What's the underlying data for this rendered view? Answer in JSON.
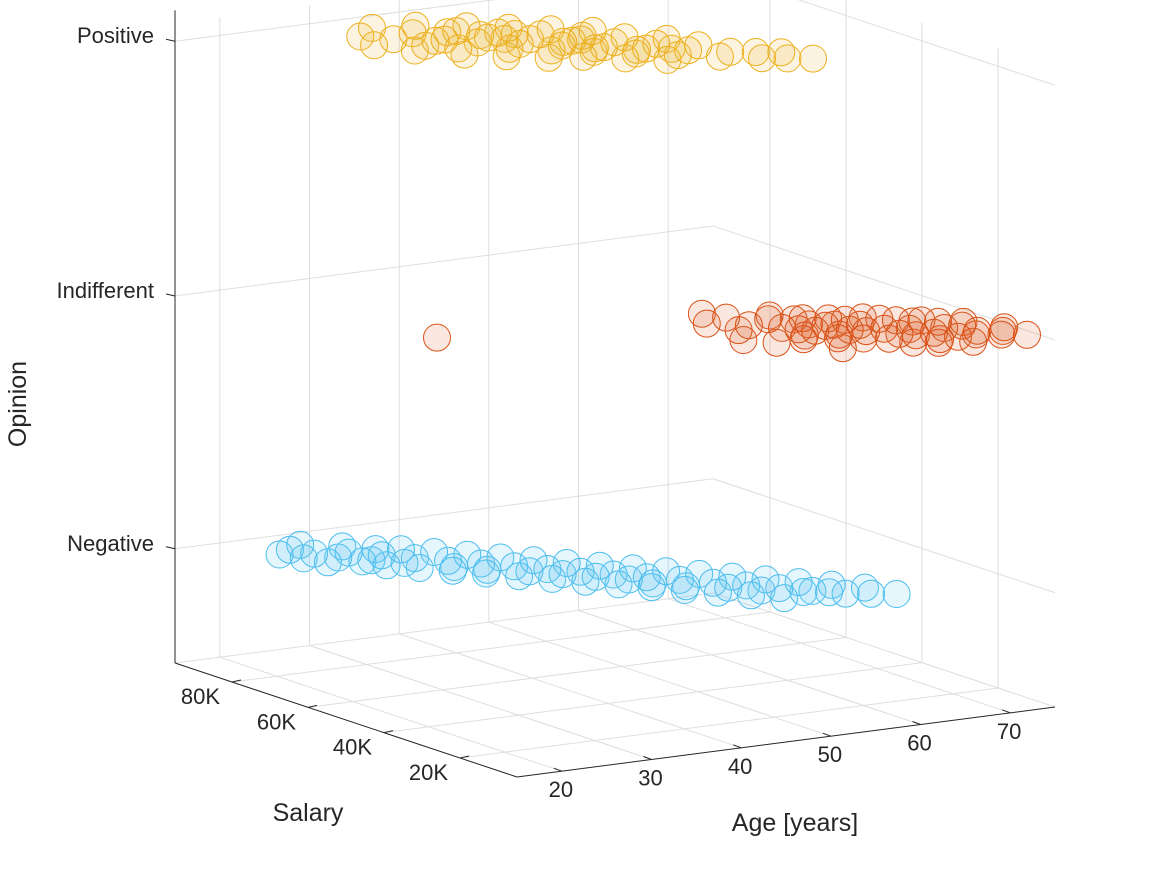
{
  "chart_data": {
    "type": "scatter3d",
    "xlabel": "Age [years]",
    "ylabel": "Salary",
    "zlabel": "Opinion",
    "x_ticks": [
      20,
      30,
      40,
      50,
      60,
      70
    ],
    "y_ticks": [
      "20K",
      "40K",
      "60K",
      "80K"
    ],
    "y_tick_values": [
      20000,
      40000,
      60000,
      80000
    ],
    "z_ticks": [
      "Negative",
      "Indifferent",
      "Positive"
    ],
    "xlim": [
      15,
      75
    ],
    "ylim": [
      5000,
      95000
    ],
    "grid": true,
    "legend": "none",
    "series": [
      {
        "color": "#4DBEEE",
        "z": "Negative",
        "points": [
          [
            22,
            84000
          ],
          [
            23,
            80000
          ],
          [
            24,
            86000
          ],
          [
            24,
            76000
          ],
          [
            25,
            82000
          ],
          [
            26,
            78000
          ],
          [
            26,
            88000
          ],
          [
            27,
            74000
          ],
          [
            28,
            80000
          ],
          [
            28,
            70000
          ],
          [
            29,
            84000
          ],
          [
            30,
            76000
          ],
          [
            30,
            66000
          ],
          [
            31,
            80000
          ],
          [
            32,
            72000
          ],
          [
            32,
            62000
          ],
          [
            33,
            78000
          ],
          [
            34,
            68000
          ],
          [
            34,
            58000
          ],
          [
            35,
            74000
          ],
          [
            36,
            64000
          ],
          [
            36,
            54000
          ],
          [
            37,
            70000
          ],
          [
            38,
            60000
          ],
          [
            38,
            50000
          ],
          [
            39,
            66000
          ],
          [
            40,
            56000
          ],
          [
            40,
            46000
          ],
          [
            41,
            62000
          ],
          [
            42,
            52000
          ],
          [
            42,
            42000
          ],
          [
            43,
            58000
          ],
          [
            44,
            48000
          ],
          [
            44,
            38000
          ],
          [
            45,
            54000
          ],
          [
            46,
            44000
          ],
          [
            46,
            34000
          ],
          [
            47,
            50000
          ],
          [
            48,
            40000
          ],
          [
            48,
            30000
          ],
          [
            49,
            46000
          ],
          [
            50,
            36000
          ],
          [
            50,
            26000
          ],
          [
            51,
            42000
          ],
          [
            52,
            32000
          ],
          [
            52,
            22000
          ],
          [
            53,
            38000
          ],
          [
            54,
            28000
          ],
          [
            55,
            34000
          ],
          [
            56,
            24000
          ],
          [
            57,
            30000
          ],
          [
            58,
            20000
          ],
          [
            59,
            26000
          ],
          [
            60,
            18000
          ],
          [
            61,
            22000
          ],
          [
            62,
            16000
          ],
          [
            35,
            60000
          ],
          [
            33,
            64000
          ],
          [
            45,
            40000
          ],
          [
            47,
            36000
          ],
          [
            40,
            52000
          ],
          [
            38,
            56000
          ],
          [
            55,
            24000
          ],
          [
            52,
            28000
          ],
          [
            30,
            70000
          ],
          [
            28,
            74000
          ],
          [
            42,
            48000
          ],
          [
            50,
            32000
          ],
          [
            57,
            22000
          ],
          [
            44,
            44000
          ]
        ]
      },
      {
        "color": "#D95319",
        "z": "Indifferent",
        "points": [
          [
            26,
            52000
          ],
          [
            52,
            34000
          ],
          [
            50,
            28000
          ],
          [
            53,
            46000
          ],
          [
            51,
            40000
          ],
          [
            54,
            42000
          ],
          [
            52,
            24000
          ],
          [
            56,
            32000
          ],
          [
            55,
            24000
          ],
          [
            57,
            38000
          ],
          [
            56,
            16000
          ],
          [
            58,
            28000
          ],
          [
            58,
            22000
          ],
          [
            59,
            36000
          ],
          [
            60,
            30000
          ],
          [
            60,
            20000
          ],
          [
            61,
            26000
          ],
          [
            62,
            34000
          ],
          [
            62,
            18000
          ],
          [
            63,
            28000
          ],
          [
            63,
            14000
          ],
          [
            64,
            24000
          ],
          [
            65,
            32000
          ],
          [
            65,
            12000
          ],
          [
            66,
            22000
          ],
          [
            66,
            30000
          ],
          [
            67,
            18000
          ],
          [
            68,
            26000
          ],
          [
            68,
            10000
          ],
          [
            69,
            20000
          ],
          [
            70,
            14000
          ],
          [
            70,
            24000
          ],
          [
            71,
            16000
          ],
          [
            72,
            12000
          ],
          [
            72,
            22000
          ],
          [
            73,
            14000
          ],
          [
            74,
            10000
          ],
          [
            74,
            16000
          ],
          [
            57,
            30000
          ],
          [
            59,
            24000
          ],
          [
            61,
            30000
          ],
          [
            64,
            20000
          ],
          [
            66,
            14000
          ],
          [
            69,
            26000
          ],
          [
            71,
            20000
          ],
          [
            58,
            40000
          ],
          [
            62,
            24000
          ],
          [
            67,
            28000
          ],
          [
            60,
            36000
          ],
          [
            63,
            32000
          ],
          [
            56,
            26000
          ],
          [
            65,
            18000
          ],
          [
            68,
            14000
          ],
          [
            54,
            36000
          ],
          [
            59,
            32000
          ]
        ]
      },
      {
        "color": "#EDB120",
        "z": "Positive",
        "points": [
          [
            30,
            78000
          ],
          [
            31,
            84000
          ],
          [
            32,
            72000
          ],
          [
            33,
            80000
          ],
          [
            34,
            88000
          ],
          [
            34,
            74000
          ],
          [
            35,
            66000
          ],
          [
            36,
            82000
          ],
          [
            36,
            70000
          ],
          [
            37,
            76000
          ],
          [
            38,
            62000
          ],
          [
            38,
            86000
          ],
          [
            39,
            72000
          ],
          [
            40,
            66000
          ],
          [
            40,
            80000
          ],
          [
            41,
            58000
          ],
          [
            41,
            74000
          ],
          [
            42,
            68000
          ],
          [
            42,
            82000
          ],
          [
            43,
            62000
          ],
          [
            43,
            76000
          ],
          [
            44,
            56000
          ],
          [
            44,
            70000
          ],
          [
            45,
            64000
          ],
          [
            45,
            78000
          ],
          [
            46,
            58000
          ],
          [
            46,
            72000
          ],
          [
            47,
            66000
          ],
          [
            47,
            52000
          ],
          [
            48,
            60000
          ],
          [
            48,
            74000
          ],
          [
            49,
            54000
          ],
          [
            49,
            68000
          ],
          [
            50,
            62000
          ],
          [
            50,
            48000
          ],
          [
            51,
            56000
          ],
          [
            51,
            70000
          ],
          [
            52,
            50000
          ],
          [
            52,
            64000
          ],
          [
            53,
            58000
          ],
          [
            54,
            52000
          ],
          [
            55,
            46000
          ],
          [
            55,
            60000
          ],
          [
            56,
            54000
          ],
          [
            57,
            48000
          ],
          [
            58,
            42000
          ],
          [
            59,
            46000
          ],
          [
            60,
            40000
          ],
          [
            61,
            44000
          ],
          [
            62,
            38000
          ],
          [
            39,
            80000
          ],
          [
            41,
            76000
          ],
          [
            44,
            74000
          ],
          [
            47,
            60000
          ],
          [
            53,
            54000
          ],
          [
            46,
            66000
          ],
          [
            50,
            56000
          ],
          [
            42,
            72000
          ],
          [
            36,
            76000
          ],
          [
            48,
            66000
          ]
        ]
      }
    ]
  }
}
